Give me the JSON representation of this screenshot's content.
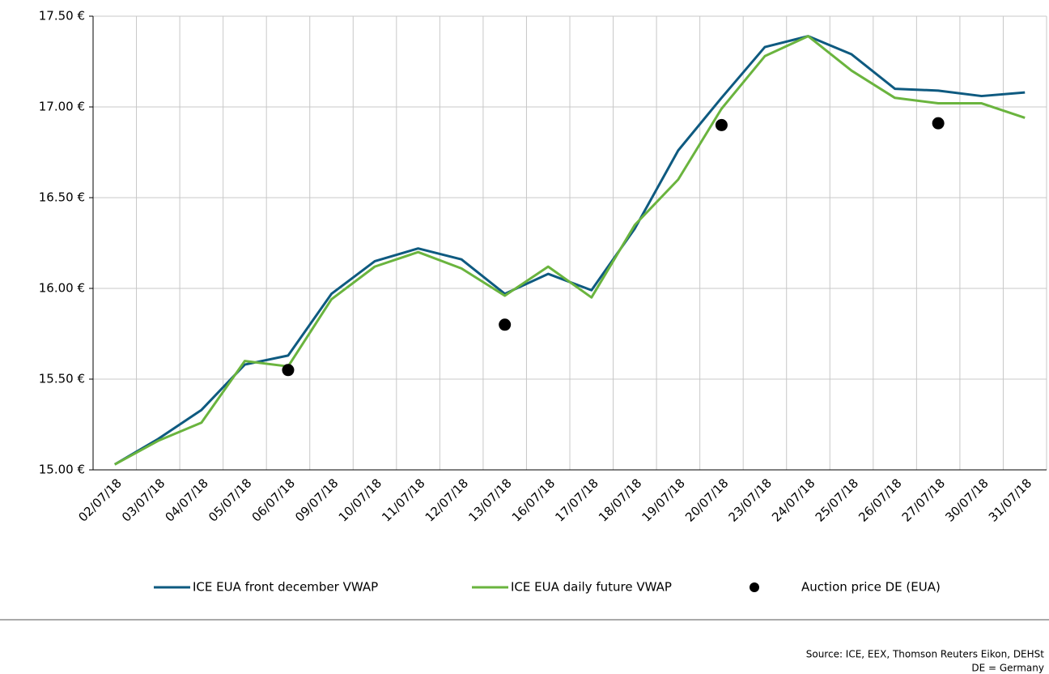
{
  "chart_data": {
    "type": "line",
    "categories": [
      "02/07/18",
      "03/07/18",
      "04/07/18",
      "05/07/18",
      "06/07/18",
      "09/07/18",
      "10/07/18",
      "11/07/18",
      "12/07/18",
      "13/07/18",
      "16/07/18",
      "17/07/18",
      "18/07/18",
      "19/07/18",
      "20/07/18",
      "23/07/18",
      "24/07/18",
      "25/07/18",
      "26/07/18",
      "27/07/18",
      "30/07/18",
      "31/07/18"
    ],
    "series": [
      {
        "name": "ICE EUA front december VWAP",
        "type": "line",
        "color": "#0e5a80",
        "values": [
          15.03,
          15.17,
          15.33,
          15.58,
          15.63,
          15.97,
          16.15,
          16.22,
          16.16,
          15.97,
          16.08,
          15.99,
          16.33,
          16.76,
          17.05,
          17.33,
          17.39,
          17.29,
          17.1,
          17.09,
          17.06,
          17.08
        ]
      },
      {
        "name": "ICE EUA daily future VWAP",
        "type": "line",
        "color": "#6ab43e",
        "values": [
          15.03,
          15.16,
          15.26,
          15.6,
          15.57,
          15.94,
          16.12,
          16.2,
          16.11,
          15.96,
          16.12,
          15.95,
          16.35,
          16.6,
          16.99,
          17.28,
          17.39,
          17.2,
          17.05,
          17.02,
          17.02,
          16.94
        ]
      },
      {
        "name": "Auction price DE (EUA)",
        "type": "scatter",
        "color": "#000000",
        "values": [
          null,
          null,
          null,
          null,
          15.55,
          null,
          null,
          null,
          null,
          15.8,
          null,
          null,
          null,
          null,
          16.9,
          null,
          null,
          null,
          null,
          16.91,
          null,
          null
        ]
      }
    ],
    "ylim": [
      15.0,
      17.5
    ],
    "yticks": [
      {
        "value": 15.0,
        "label": "15.00 €"
      },
      {
        "value": 15.5,
        "label": "15.50 €"
      },
      {
        "value": 16.0,
        "label": "16.00 €"
      },
      {
        "value": 16.5,
        "label": "16.50 €"
      },
      {
        "value": 17.0,
        "label": "17.00 €"
      },
      {
        "value": 17.5,
        "label": "17.50 €"
      }
    ],
    "grid": true,
    "legend": "bottom",
    "notes": [
      "Source: ICE, EEX, Thomson Reuters Eikon, DEHSt",
      "DE = Germany"
    ]
  }
}
